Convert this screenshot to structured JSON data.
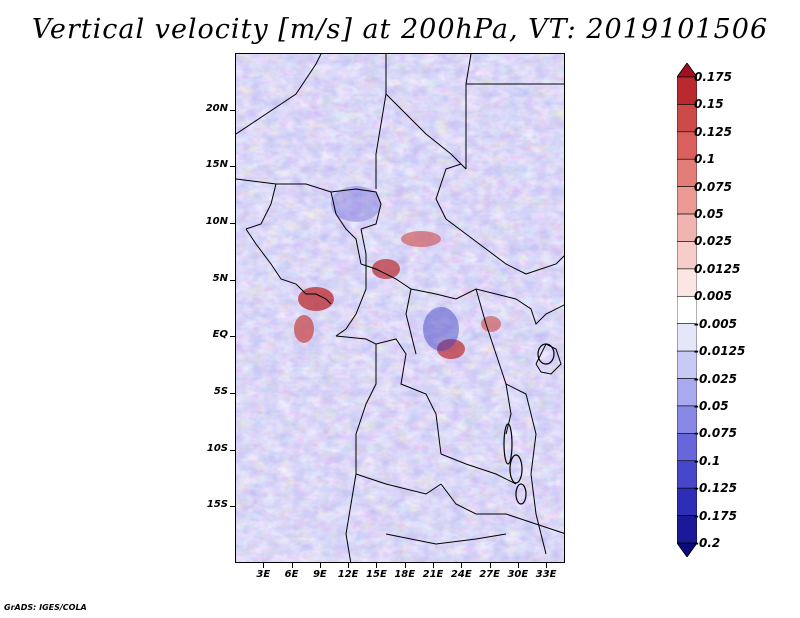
{
  "title": "Vertical velocity [m/s] at 200hPa, VT: 2019101506",
  "credit": "GrADS: IGES/COLA",
  "map": {
    "lat_range": [
      -20,
      25
    ],
    "lon_range": [
      0,
      35
    ],
    "lat_labels": [
      "20N",
      "15N",
      "10N",
      "5N",
      "EQ",
      "5S",
      "10S",
      "15S"
    ],
    "lat_values": [
      20,
      15,
      10,
      5,
      0,
      -5,
      -10,
      -15
    ],
    "lon_labels": [
      "3E",
      "6E",
      "9E",
      "12E",
      "15E",
      "18E",
      "21E",
      "24E",
      "27E",
      "30E",
      "33E"
    ],
    "lon_values": [
      3,
      6,
      9,
      12,
      15,
      18,
      21,
      24,
      27,
      30,
      33
    ]
  },
  "colorbar": {
    "labels": [
      "0.175",
      "0.15",
      "0.125",
      "0.1",
      "0.075",
      "0.05",
      "0.025",
      "0.0125",
      "0.005",
      "-0.005",
      "-0.0125",
      "-0.025",
      "-0.05",
      "-0.075",
      "-0.1",
      "-0.125",
      "-0.175",
      "-0.2"
    ],
    "colors": [
      "#a01020",
      "#b82a2e",
      "#cc4a48",
      "#d9605c",
      "#e27d77",
      "#ea9994",
      "#f2b4b0",
      "#f7cdca",
      "#fbe6e4",
      "#ffffff",
      "#e6e6fb",
      "#c9c9f5",
      "#a9a9ef",
      "#8888e6",
      "#6767db",
      "#4747cc",
      "#2d2db5",
      "#1a1a99",
      "#0b0b7a"
    ]
  }
}
